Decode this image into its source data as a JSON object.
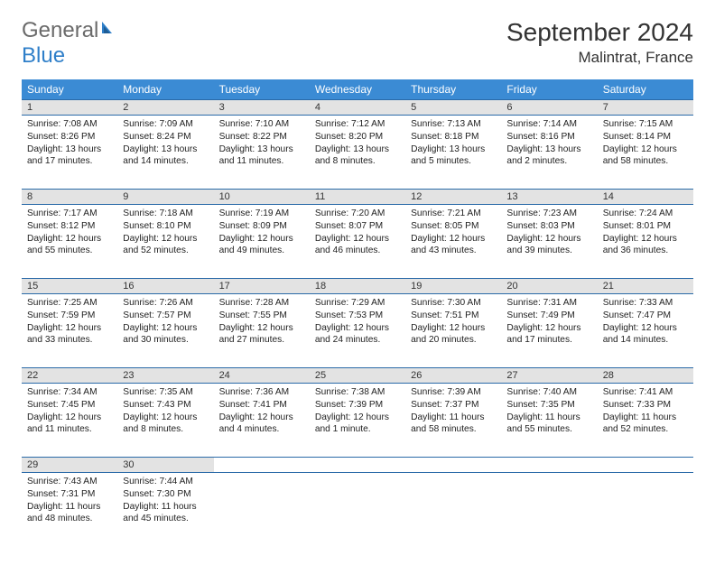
{
  "brand": {
    "word1": "General",
    "word2": "Blue"
  },
  "title": "September 2024",
  "location": "Malintrat, France",
  "colors": {
    "header_bg": "#3b8bd4",
    "header_text": "#ffffff",
    "rule": "#2a6aa8",
    "daynum_bg": "#e3e3e3",
    "body_text": "#222222",
    "brand_gray": "#6a6a6a",
    "brand_blue": "#2f7fc9"
  },
  "day_headers": [
    "Sunday",
    "Monday",
    "Tuesday",
    "Wednesday",
    "Thursday",
    "Friday",
    "Saturday"
  ],
  "weeks": [
    [
      {
        "n": "1",
        "sr": "7:08 AM",
        "ss": "8:26 PM",
        "dl": "13 hours and 17 minutes."
      },
      {
        "n": "2",
        "sr": "7:09 AM",
        "ss": "8:24 PM",
        "dl": "13 hours and 14 minutes."
      },
      {
        "n": "3",
        "sr": "7:10 AM",
        "ss": "8:22 PM",
        "dl": "13 hours and 11 minutes."
      },
      {
        "n": "4",
        "sr": "7:12 AM",
        "ss": "8:20 PM",
        "dl": "13 hours and 8 minutes."
      },
      {
        "n": "5",
        "sr": "7:13 AM",
        "ss": "8:18 PM",
        "dl": "13 hours and 5 minutes."
      },
      {
        "n": "6",
        "sr": "7:14 AM",
        "ss": "8:16 PM",
        "dl": "13 hours and 2 minutes."
      },
      {
        "n": "7",
        "sr": "7:15 AM",
        "ss": "8:14 PM",
        "dl": "12 hours and 58 minutes."
      }
    ],
    [
      {
        "n": "8",
        "sr": "7:17 AM",
        "ss": "8:12 PM",
        "dl": "12 hours and 55 minutes."
      },
      {
        "n": "9",
        "sr": "7:18 AM",
        "ss": "8:10 PM",
        "dl": "12 hours and 52 minutes."
      },
      {
        "n": "10",
        "sr": "7:19 AM",
        "ss": "8:09 PM",
        "dl": "12 hours and 49 minutes."
      },
      {
        "n": "11",
        "sr": "7:20 AM",
        "ss": "8:07 PM",
        "dl": "12 hours and 46 minutes."
      },
      {
        "n": "12",
        "sr": "7:21 AM",
        "ss": "8:05 PM",
        "dl": "12 hours and 43 minutes."
      },
      {
        "n": "13",
        "sr": "7:23 AM",
        "ss": "8:03 PM",
        "dl": "12 hours and 39 minutes."
      },
      {
        "n": "14",
        "sr": "7:24 AM",
        "ss": "8:01 PM",
        "dl": "12 hours and 36 minutes."
      }
    ],
    [
      {
        "n": "15",
        "sr": "7:25 AM",
        "ss": "7:59 PM",
        "dl": "12 hours and 33 minutes."
      },
      {
        "n": "16",
        "sr": "7:26 AM",
        "ss": "7:57 PM",
        "dl": "12 hours and 30 minutes."
      },
      {
        "n": "17",
        "sr": "7:28 AM",
        "ss": "7:55 PM",
        "dl": "12 hours and 27 minutes."
      },
      {
        "n": "18",
        "sr": "7:29 AM",
        "ss": "7:53 PM",
        "dl": "12 hours and 24 minutes."
      },
      {
        "n": "19",
        "sr": "7:30 AM",
        "ss": "7:51 PM",
        "dl": "12 hours and 20 minutes."
      },
      {
        "n": "20",
        "sr": "7:31 AM",
        "ss": "7:49 PM",
        "dl": "12 hours and 17 minutes."
      },
      {
        "n": "21",
        "sr": "7:33 AM",
        "ss": "7:47 PM",
        "dl": "12 hours and 14 minutes."
      }
    ],
    [
      {
        "n": "22",
        "sr": "7:34 AM",
        "ss": "7:45 PM",
        "dl": "12 hours and 11 minutes."
      },
      {
        "n": "23",
        "sr": "7:35 AM",
        "ss": "7:43 PM",
        "dl": "12 hours and 8 minutes."
      },
      {
        "n": "24",
        "sr": "7:36 AM",
        "ss": "7:41 PM",
        "dl": "12 hours and 4 minutes."
      },
      {
        "n": "25",
        "sr": "7:38 AM",
        "ss": "7:39 PM",
        "dl": "12 hours and 1 minute."
      },
      {
        "n": "26",
        "sr": "7:39 AM",
        "ss": "7:37 PM",
        "dl": "11 hours and 58 minutes."
      },
      {
        "n": "27",
        "sr": "7:40 AM",
        "ss": "7:35 PM",
        "dl": "11 hours and 55 minutes."
      },
      {
        "n": "28",
        "sr": "7:41 AM",
        "ss": "7:33 PM",
        "dl": "11 hours and 52 minutes."
      }
    ],
    [
      {
        "n": "29",
        "sr": "7:43 AM",
        "ss": "7:31 PM",
        "dl": "11 hours and 48 minutes."
      },
      {
        "n": "30",
        "sr": "7:44 AM",
        "ss": "7:30 PM",
        "dl": "11 hours and 45 minutes."
      },
      null,
      null,
      null,
      null,
      null
    ]
  ],
  "labels": {
    "sunrise": "Sunrise:",
    "sunset": "Sunset:",
    "daylight": "Daylight:"
  }
}
